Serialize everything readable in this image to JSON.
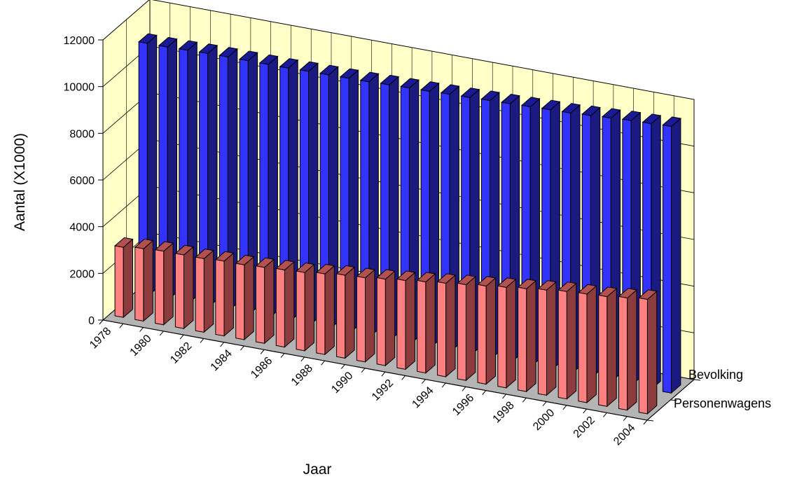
{
  "colors": {
    "back_wall": "#ffffc8",
    "floor": "#b4b4b4",
    "gridline": "#000000",
    "bevolking_front": "#3333ff",
    "bevolking_side": "#1a1a80",
    "bevolking_top": "#1a1a99",
    "personenwagens_front": "#ff8080",
    "personenwagens_side": "#8c3c3c",
    "personenwagens_top": "#b35050"
  },
  "chart_data": {
    "type": "bar",
    "variant": "3d-clustered-depth",
    "title": "",
    "xlabel": "Jaar",
    "ylabel": "Aantal (X1000)",
    "ylim": [
      0,
      12000
    ],
    "yticks": [
      "0",
      "2000",
      "4000",
      "6000",
      "8000",
      "10000",
      "12000"
    ],
    "grid": true,
    "categories": [
      "1978",
      "1979",
      "1980",
      "1981",
      "1982",
      "1983",
      "1984",
      "1985",
      "1986",
      "1987",
      "1988",
      "1989",
      "1990",
      "1991",
      "1992",
      "1993",
      "1994",
      "1995",
      "1996",
      "1997",
      "1998",
      "1999",
      "2000",
      "2001",
      "2002",
      "2003",
      "2004"
    ],
    "x_tick_labels": [
      "1978",
      "1980",
      "1982",
      "1984",
      "1986",
      "1988",
      "1990",
      "1992",
      "1994",
      "1996",
      "1998",
      "2000",
      "2002",
      "2004"
    ],
    "series": [
      {
        "name": "Personenwagens",
        "values": [
          3000,
          3100,
          3150,
          3150,
          3150,
          3200,
          3200,
          3250,
          3300,
          3350,
          3450,
          3550,
          3600,
          3700,
          3800,
          3900,
          4000,
          4100,
          4200,
          4300,
          4400,
          4500,
          4600,
          4650,
          4700,
          4800,
          4900
        ]
      },
      {
        "name": "Bevolking",
        "values": [
          10850,
          10850,
          10870,
          10890,
          10900,
          10900,
          10900,
          10900,
          10920,
          10930,
          10940,
          10950,
          10980,
          11000,
          11020,
          11050,
          11070,
          11100,
          11120,
          11150,
          11180,
          11200,
          11250,
          11300,
          11350,
          11380,
          11420
        ]
      }
    ]
  }
}
